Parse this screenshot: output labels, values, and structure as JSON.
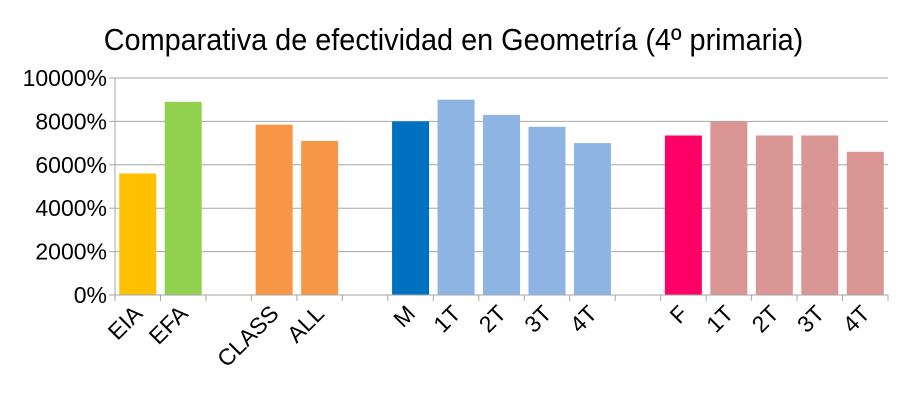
{
  "chart_data": {
    "type": "bar",
    "title": "Comparativa de efectividad en Geometría (4º primaria)",
    "xlabel": "",
    "ylabel": "",
    "ylim": [
      0,
      10000
    ],
    "yticks": [
      "0%",
      "2000%",
      "4000%",
      "6000%",
      "8000%",
      "10000%"
    ],
    "ytick_values": [
      0,
      2000,
      4000,
      6000,
      8000,
      10000
    ],
    "grid": true,
    "legend": "none",
    "categories": [
      "EIA",
      "EFA",
      "",
      "CLASS",
      "ALL",
      "",
      "M",
      "1T",
      "2T",
      "3T",
      "4T",
      "",
      "F",
      "1T",
      "2T",
      "3T",
      "4T"
    ],
    "values": [
      5600,
      8900,
      null,
      7850,
      7100,
      null,
      8000,
      9000,
      8300,
      7750,
      7000,
      null,
      7350,
      8000,
      7350,
      7350,
      6600
    ],
    "colors": [
      "#ffc000",
      "#92d050",
      null,
      "#f79646",
      "#f79646",
      null,
      "#0070c0",
      "#8db4e2",
      "#8db4e2",
      "#8db4e2",
      "#8db4e2",
      null,
      "#ff0066",
      "#da9694",
      "#da9694",
      "#da9694",
      "#da9694"
    ]
  }
}
